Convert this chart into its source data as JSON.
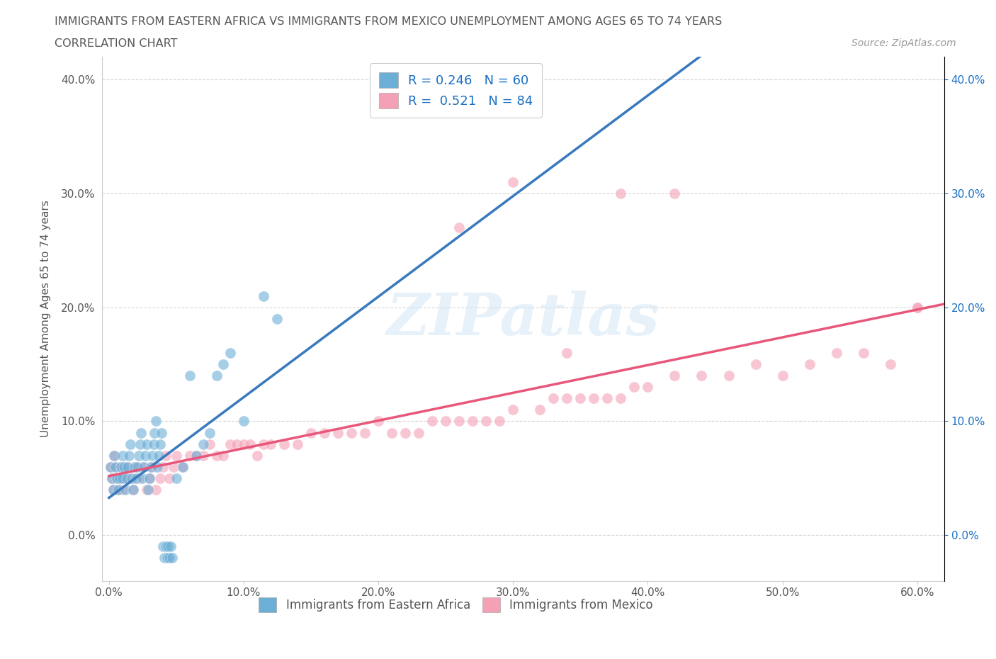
{
  "title_line1": "IMMIGRANTS FROM EASTERN AFRICA VS IMMIGRANTS FROM MEXICO UNEMPLOYMENT AMONG AGES 65 TO 74 YEARS",
  "title_line2": "CORRELATION CHART",
  "source_text": "Source: ZipAtlas.com",
  "ylabel": "Unemployment Among Ages 65 to 74 years",
  "xlim": [
    -0.005,
    0.62
  ],
  "ylim": [
    -0.04,
    0.42
  ],
  "xtick_labels": [
    "0.0%",
    "",
    "",
    "",
    "",
    "",
    "10.0%",
    "",
    "",
    "",
    "",
    "",
    "20.0%",
    "",
    "",
    "",
    "",
    "",
    "30.0%",
    "",
    "",
    "",
    "",
    "",
    "40.0%",
    "",
    "",
    "",
    "",
    "",
    "50.0%",
    "",
    "",
    "",
    "",
    "",
    "60.0%"
  ],
  "xtick_vals": [
    0.0,
    0.1,
    0.2,
    0.3,
    0.4,
    0.5,
    0.6
  ],
  "ytick_labels": [
    "0.0%",
    "10.0%",
    "20.0%",
    "30.0%",
    "40.0%"
  ],
  "ytick_vals": [
    0.0,
    0.1,
    0.2,
    0.3,
    0.4
  ],
  "color_eastern": "#6baed6",
  "color_mexico": "#f4a0b5",
  "color_trendline_eastern": "#3a7abf",
  "color_trendline_mexico": "#e8567a",
  "R_eastern": 0.246,
  "N_eastern": 60,
  "R_mexico": 0.521,
  "N_mexico": 84,
  "legend_label_eastern": "Immigrants from Eastern Africa",
  "legend_label_mexico": "Immigrants from Mexico",
  "watermark": "ZIPatlas",
  "background_color": "#ffffff",
  "grid_color": "#cccccc",
  "title_color": "#555555",
  "R_label_color": "#1a6fc4",
  "axis_label_color": "#555555",
  "eastern_africa_x": [
    0.001,
    0.002,
    0.003,
    0.004,
    0.005,
    0.006,
    0.007,
    0.008,
    0.009,
    0.01,
    0.01,
    0.011,
    0.012,
    0.013,
    0.014,
    0.015,
    0.016,
    0.017,
    0.018,
    0.019,
    0.02,
    0.021,
    0.022,
    0.023,
    0.024,
    0.025,
    0.026,
    0.027,
    0.028,
    0.029,
    0.03,
    0.031,
    0.032,
    0.033,
    0.034,
    0.035,
    0.036,
    0.037,
    0.038,
    0.039,
    0.04,
    0.041,
    0.042,
    0.043,
    0.044,
    0.045,
    0.046,
    0.047,
    0.05,
    0.055,
    0.06,
    0.065,
    0.07,
    0.075,
    0.08,
    0.085,
    0.09,
    0.1,
    0.115,
    0.125
  ],
  "eastern_africa_y": [
    0.06,
    0.05,
    0.04,
    0.07,
    0.06,
    0.05,
    0.04,
    0.05,
    0.06,
    0.07,
    0.05,
    0.06,
    0.04,
    0.05,
    0.06,
    0.07,
    0.08,
    0.05,
    0.04,
    0.06,
    0.05,
    0.06,
    0.07,
    0.08,
    0.09,
    0.05,
    0.06,
    0.07,
    0.08,
    0.04,
    0.05,
    0.06,
    0.07,
    0.08,
    0.09,
    0.1,
    0.06,
    0.07,
    0.08,
    0.09,
    -0.01,
    -0.02,
    -0.01,
    -0.02,
    -0.01,
    -0.02,
    -0.01,
    -0.02,
    0.05,
    0.06,
    0.14,
    0.07,
    0.08,
    0.09,
    0.14,
    0.15,
    0.16,
    0.1,
    0.21,
    0.19
  ],
  "mexico_x": [
    0.001,
    0.002,
    0.003,
    0.004,
    0.005,
    0.006,
    0.007,
    0.008,
    0.009,
    0.01,
    0.012,
    0.014,
    0.016,
    0.018,
    0.02,
    0.022,
    0.025,
    0.028,
    0.03,
    0.032,
    0.035,
    0.038,
    0.04,
    0.042,
    0.045,
    0.048,
    0.05,
    0.055,
    0.06,
    0.065,
    0.07,
    0.075,
    0.08,
    0.085,
    0.09,
    0.095,
    0.1,
    0.105,
    0.11,
    0.115,
    0.12,
    0.13,
    0.14,
    0.15,
    0.16,
    0.17,
    0.18,
    0.19,
    0.2,
    0.21,
    0.22,
    0.23,
    0.24,
    0.25,
    0.26,
    0.27,
    0.28,
    0.29,
    0.3,
    0.32,
    0.33,
    0.34,
    0.35,
    0.36,
    0.37,
    0.38,
    0.39,
    0.4,
    0.42,
    0.44,
    0.46,
    0.48,
    0.5,
    0.52,
    0.54,
    0.56,
    0.58,
    0.6,
    0.38,
    0.42,
    0.26,
    0.3,
    0.34,
    0.6
  ],
  "mexico_y": [
    0.06,
    0.05,
    0.04,
    0.07,
    0.06,
    0.05,
    0.04,
    0.05,
    0.06,
    0.04,
    0.05,
    0.06,
    0.05,
    0.04,
    0.06,
    0.05,
    0.06,
    0.04,
    0.05,
    0.06,
    0.04,
    0.05,
    0.06,
    0.07,
    0.05,
    0.06,
    0.07,
    0.06,
    0.07,
    0.07,
    0.07,
    0.08,
    0.07,
    0.07,
    0.08,
    0.08,
    0.08,
    0.08,
    0.07,
    0.08,
    0.08,
    0.08,
    0.08,
    0.09,
    0.09,
    0.09,
    0.09,
    0.09,
    0.1,
    0.09,
    0.09,
    0.09,
    0.1,
    0.1,
    0.1,
    0.1,
    0.1,
    0.1,
    0.11,
    0.11,
    0.12,
    0.12,
    0.12,
    0.12,
    0.12,
    0.12,
    0.13,
    0.13,
    0.14,
    0.14,
    0.14,
    0.15,
    0.14,
    0.15,
    0.16,
    0.16,
    0.15,
    0.2,
    0.3,
    0.3,
    0.27,
    0.31,
    0.16,
    0.2
  ]
}
